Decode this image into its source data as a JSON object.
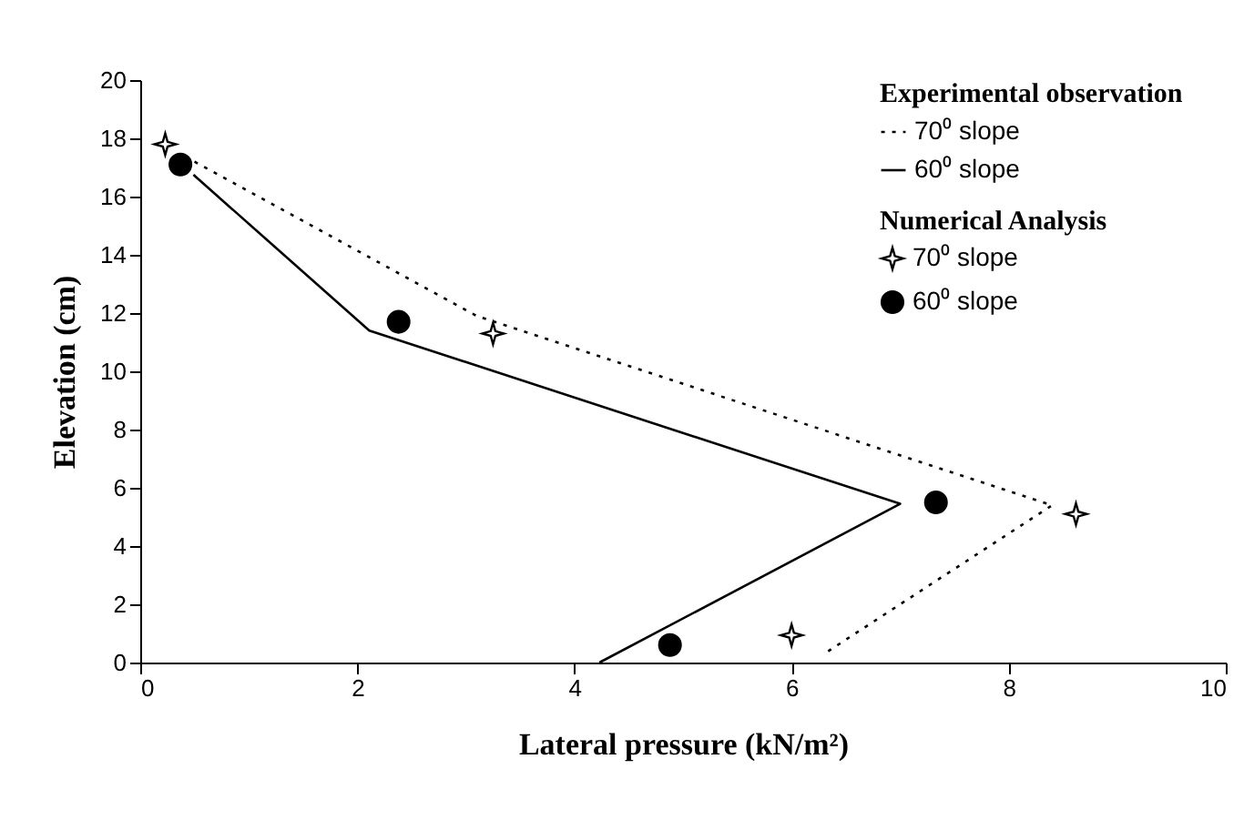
{
  "chart_data": {
    "type": "line",
    "xlabel": "Lateral pressure (kN/m²)",
    "ylabel": "Elevation (cm)",
    "legend_title": [
      "Experimental observation",
      "Numerical Analysis"
    ],
    "legend": "top right",
    "grid": false,
    "xlim": [
      0,
      10
    ],
    "xticks": [
      0,
      2,
      4,
      6,
      8,
      10
    ],
    "ylim": [
      0,
      20
    ],
    "yticks": [
      0,
      2,
      4,
      6,
      8,
      10,
      12,
      14,
      16,
      18,
      20
    ],
    "series": [
      {
        "name": "70⁰ slope",
        "type": "line",
        "line_style": "dotted",
        "marker": "none",
        "color": "#000000",
        "x": [
          0.5,
          3.1,
          8.4,
          6.3
        ],
        "values": [
          17.2,
          11.9,
          5.4,
          0.3
        ]
      },
      {
        "name": "60⁰ slope",
        "type": "line",
        "line_style": "solid",
        "marker": "none",
        "color": "#000000",
        "x": [
          0.49,
          2.11,
          7.0,
          4.23
        ],
        "values": [
          16.75,
          11.4,
          5.45,
          0
        ]
      },
      {
        "name": "70⁰ slope",
        "type": "scatter",
        "marker": "star",
        "color": "#000000",
        "x": [
          0.23,
          3.25,
          8.62,
          6.0
        ],
        "values": [
          17.8,
          11.3,
          5.1,
          0.94
        ]
      },
      {
        "name": "60⁰ slope",
        "type": "scatter",
        "marker": "circle",
        "color": "#000000",
        "x": [
          0.37,
          2.38,
          7.33,
          4.88
        ],
        "values": [
          17.1,
          11.7,
          5.5,
          0.6
        ]
      }
    ]
  }
}
